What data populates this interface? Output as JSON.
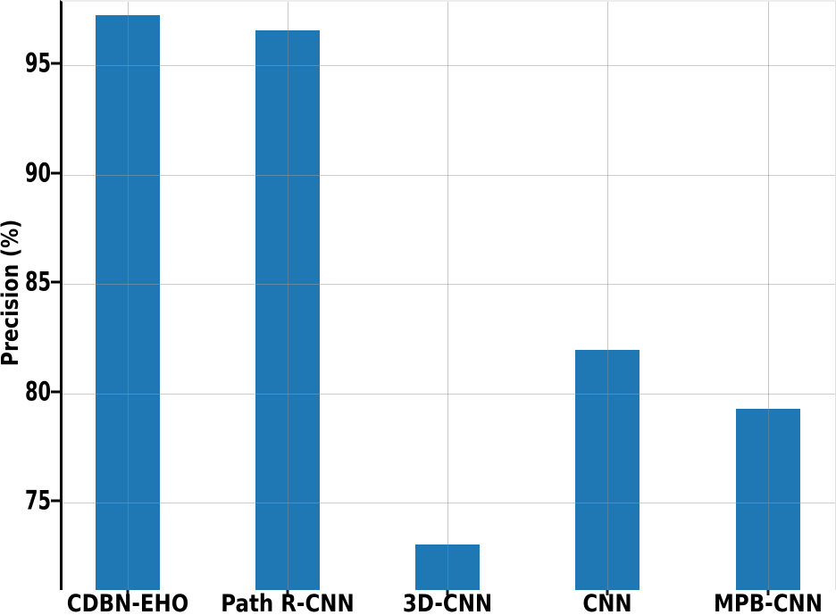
{
  "chart_data": {
    "type": "bar",
    "title": "",
    "categories": [
      "CDBN-EHO",
      "Path R-CNN",
      "3D-CNN",
      "CNN",
      "MPB-CNN"
    ],
    "values": [
      97.3,
      96.6,
      73.1,
      82.0,
      79.3
    ],
    "xlabel": "",
    "ylabel": "Precision (%)",
    "yticks": [
      75,
      80,
      85,
      90,
      95
    ],
    "ylim": [
      71,
      97.9
    ],
    "grid": "both-axes light gray, drawn over bars",
    "legend": "none",
    "bar_color": "#1f77b4"
  },
  "colors": {
    "bar": "#1f77b4",
    "grid": "#d9d9d9",
    "axis_spine": "#000000",
    "background": "#ffffff",
    "text": "#000000"
  }
}
